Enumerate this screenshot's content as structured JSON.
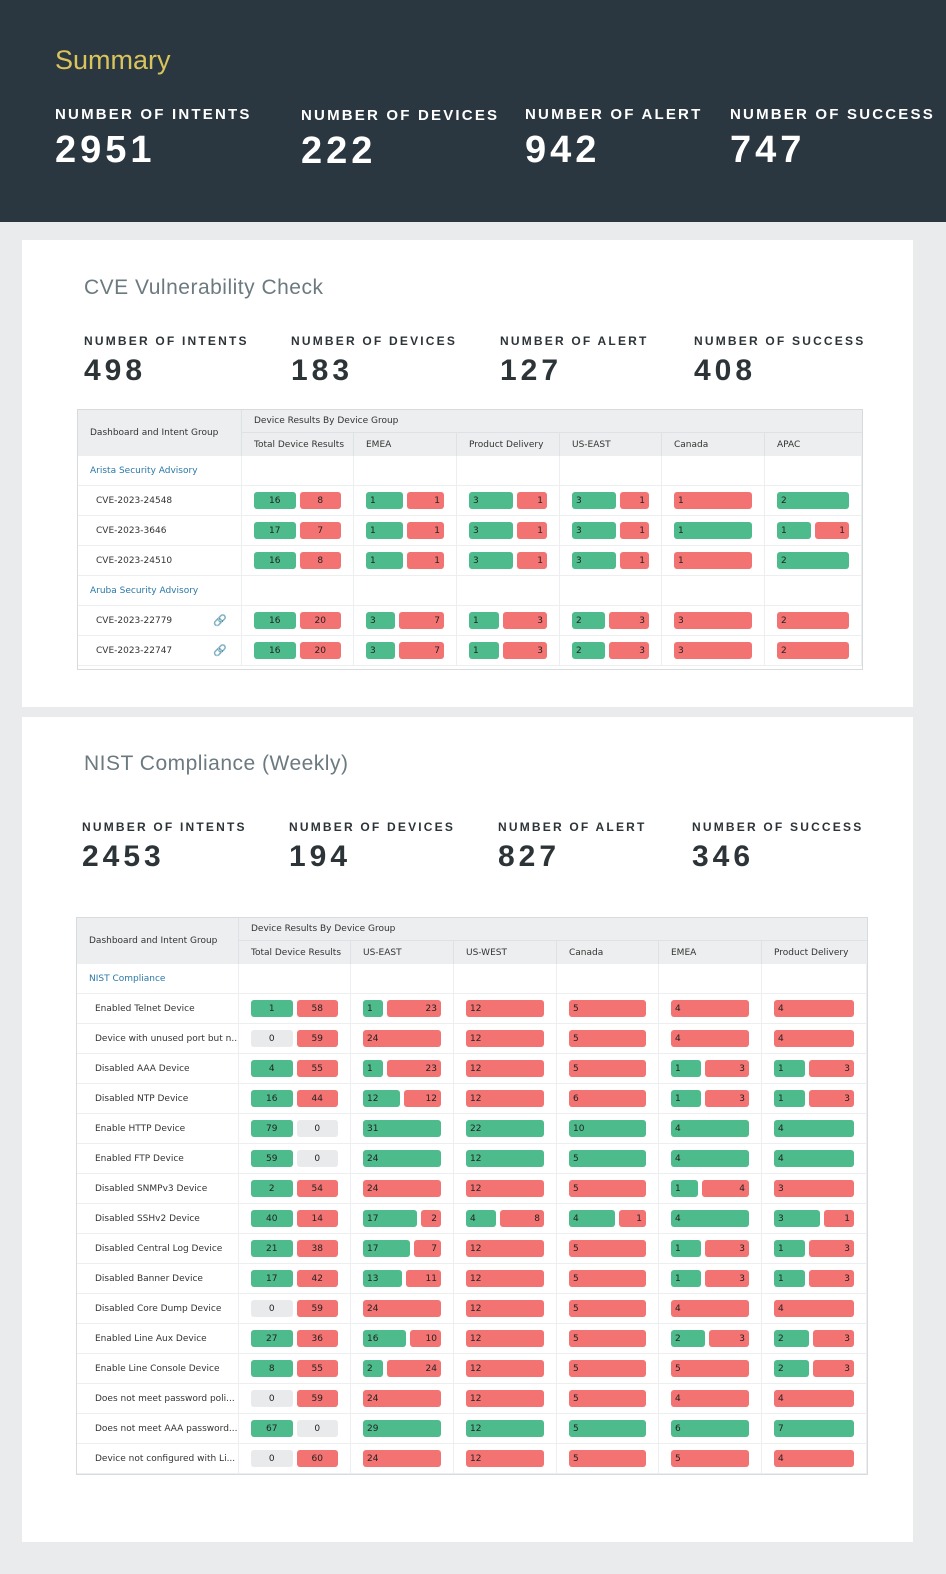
{
  "colors": {
    "header_bg": "#2b3740",
    "accent": "#d9c45c",
    "pass": "#4dbb8b",
    "fail": "#f37272",
    "zero": "#e9eaeb",
    "link": "#2a78a8"
  },
  "summary": {
    "title": "Summary",
    "stats": [
      {
        "label": "NUMBER OF INTENTS",
        "value": "2951"
      },
      {
        "label": "NUMBER OF DEVICES",
        "value": "222"
      },
      {
        "label": "NUMBER OF ALERT",
        "value": "942"
      },
      {
        "label": "NUMBER OF SUCCESS",
        "value": "747"
      }
    ]
  },
  "cve": {
    "title": "CVE Vulnerability Check",
    "stats": [
      {
        "label": "NUMBER OF INTENTS",
        "value": "498"
      },
      {
        "label": "NUMBER OF DEVICES",
        "value": "183"
      },
      {
        "label": "NUMBER OF ALERT",
        "value": "127"
      },
      {
        "label": "NUMBER OF SUCCESS",
        "value": "408"
      }
    ],
    "table": {
      "first_header": "Dashboard and Intent Group",
      "group_header": "Device Results By Device Group",
      "columns": [
        "Total Device Results",
        "EMEA",
        "Product Delivery",
        "US-EAST",
        "Canada",
        "APAC"
      ],
      "rows": [
        {
          "group": "Arista Security Advisory"
        },
        {
          "name": "CVE-2023-24548",
          "cells": [
            [
              16,
              8
            ],
            [
              1,
              1
            ],
            [
              3,
              1
            ],
            [
              3,
              1
            ],
            [
              0,
              1
            ],
            [
              2,
              0
            ]
          ]
        },
        {
          "name": "CVE-2023-3646",
          "cells": [
            [
              17,
              7
            ],
            [
              1,
              1
            ],
            [
              3,
              1
            ],
            [
              3,
              1
            ],
            [
              1,
              0
            ],
            [
              1,
              1
            ]
          ]
        },
        {
          "name": "CVE-2023-24510",
          "cells": [
            [
              16,
              8
            ],
            [
              1,
              1
            ],
            [
              3,
              1
            ],
            [
              3,
              1
            ],
            [
              0,
              1
            ],
            [
              2,
              0
            ]
          ]
        },
        {
          "group": "Aruba Security Advisory"
        },
        {
          "name": "CVE-2023-22779",
          "link_icon": "link-icon",
          "cells": [
            [
              16,
              20
            ],
            [
              3,
              7
            ],
            [
              1,
              3
            ],
            [
              2,
              3
            ],
            [
              0,
              3
            ],
            [
              0,
              2
            ]
          ]
        },
        {
          "name": "CVE-2023-22747",
          "link_icon": "link-icon",
          "cells": [
            [
              16,
              20
            ],
            [
              3,
              7
            ],
            [
              1,
              3
            ],
            [
              2,
              3
            ],
            [
              0,
              3
            ],
            [
              0,
              2
            ]
          ]
        }
      ]
    }
  },
  "nist": {
    "title": "NIST Compliance (Weekly)",
    "stats": [
      {
        "label": "NUMBER OF INTENTS",
        "value": "2453"
      },
      {
        "label": "NUMBER OF DEVICES",
        "value": "194"
      },
      {
        "label": "NUMBER OF ALERT",
        "value": "827"
      },
      {
        "label": "NUMBER OF SUCCESS",
        "value": "346"
      }
    ],
    "table": {
      "first_header": "Dashboard and Intent Group",
      "group_header": "Device Results By Device Group",
      "columns": [
        "Total Device Results",
        "US-EAST",
        "US-WEST",
        "Canada",
        "EMEA",
        "Product Delivery"
      ],
      "rows": [
        {
          "group": "NIST Compliance"
        },
        {
          "name": "Enabled Telnet Device",
          "cells": [
            [
              1,
              58
            ],
            [
              1,
              23
            ],
            [
              0,
              12
            ],
            [
              0,
              5
            ],
            [
              0,
              4
            ],
            [
              0,
              4
            ]
          ]
        },
        {
          "name": "Device with unused port but n...",
          "cells": [
            [
              0,
              59
            ],
            [
              0,
              24
            ],
            [
              0,
              12
            ],
            [
              0,
              5
            ],
            [
              0,
              4
            ],
            [
              0,
              4
            ]
          ]
        },
        {
          "name": "Disabled AAA Device",
          "cells": [
            [
              4,
              55
            ],
            [
              1,
              23
            ],
            [
              0,
              12
            ],
            [
              0,
              5
            ],
            [
              1,
              3
            ],
            [
              1,
              3
            ]
          ]
        },
        {
          "name": "Disabled NTP Device",
          "cells": [
            [
              16,
              44
            ],
            [
              12,
              12
            ],
            [
              0,
              12
            ],
            [
              0,
              6
            ],
            [
              1,
              3
            ],
            [
              1,
              3
            ]
          ]
        },
        {
          "name": "Enable HTTP Device",
          "cells": [
            [
              79,
              0
            ],
            [
              31,
              0
            ],
            [
              22,
              0
            ],
            [
              10,
              0
            ],
            [
              4,
              0
            ],
            [
              4,
              0
            ]
          ]
        },
        {
          "name": "Enabled FTP Device",
          "cells": [
            [
              59,
              0
            ],
            [
              24,
              0
            ],
            [
              12,
              0
            ],
            [
              5,
              0
            ],
            [
              4,
              0
            ],
            [
              4,
              0
            ]
          ]
        },
        {
          "name": "Disabled SNMPv3 Device",
          "cells": [
            [
              2,
              54
            ],
            [
              0,
              24
            ],
            [
              0,
              12
            ],
            [
              0,
              5
            ],
            [
              1,
              4
            ],
            [
              0,
              3
            ]
          ]
        },
        {
          "name": "Disabled SSHv2 Device",
          "cells": [
            [
              40,
              14
            ],
            [
              17,
              2
            ],
            [
              4,
              8
            ],
            [
              4,
              1
            ],
            [
              4,
              0
            ],
            [
              3,
              1
            ]
          ]
        },
        {
          "name": "Disabled Central Log Device",
          "cells": [
            [
              21,
              38
            ],
            [
              17,
              7
            ],
            [
              0,
              12
            ],
            [
              0,
              5
            ],
            [
              1,
              3
            ],
            [
              1,
              3
            ]
          ]
        },
        {
          "name": "Disabled Banner Device",
          "cells": [
            [
              17,
              42
            ],
            [
              13,
              11
            ],
            [
              0,
              12
            ],
            [
              0,
              5
            ],
            [
              1,
              3
            ],
            [
              1,
              3
            ]
          ]
        },
        {
          "name": "Disabled Core Dump Device",
          "cells": [
            [
              0,
              59
            ],
            [
              0,
              24
            ],
            [
              0,
              12
            ],
            [
              0,
              5
            ],
            [
              0,
              4
            ],
            [
              0,
              4
            ]
          ]
        },
        {
          "name": "Enabled Line Aux Device",
          "cells": [
            [
              27,
              36
            ],
            [
              16,
              10
            ],
            [
              0,
              12
            ],
            [
              0,
              5
            ],
            [
              2,
              3
            ],
            [
              2,
              3
            ]
          ]
        },
        {
          "name": "Enable Line Console Device",
          "cells": [
            [
              8,
              55
            ],
            [
              2,
              24
            ],
            [
              0,
              12
            ],
            [
              0,
              5
            ],
            [
              0,
              5
            ],
            [
              2,
              3
            ]
          ]
        },
        {
          "name": "Does not meet password poli...",
          "cells": [
            [
              0,
              59
            ],
            [
              0,
              24
            ],
            [
              0,
              12
            ],
            [
              0,
              5
            ],
            [
              0,
              4
            ],
            [
              0,
              4
            ]
          ]
        },
        {
          "name": "Does not meet AAA password...",
          "cells": [
            [
              67,
              0
            ],
            [
              29,
              0
            ],
            [
              12,
              0
            ],
            [
              5,
              0
            ],
            [
              6,
              0
            ],
            [
              7,
              0
            ]
          ]
        },
        {
          "name": "Device not configured with Li...",
          "cells": [
            [
              0,
              60
            ],
            [
              0,
              24
            ],
            [
              0,
              12
            ],
            [
              0,
              5
            ],
            [
              0,
              5
            ],
            [
              0,
              4
            ]
          ]
        }
      ]
    }
  }
}
